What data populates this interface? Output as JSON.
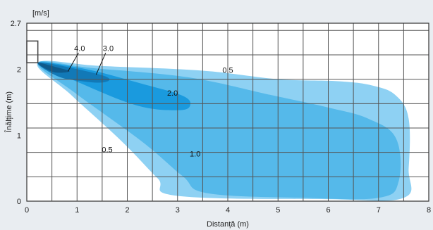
{
  "chart_data": {
    "type": "area",
    "title": "",
    "xlabel": "Distanță (m)",
    "ylabel": "Înălțime (m)",
    "unit_label": "[m/s]",
    "xlim": [
      0,
      8
    ],
    "ylim": [
      0,
      2.7
    ],
    "x_ticks": [
      "0",
      "1",
      "2",
      "3",
      "4",
      "5",
      "6",
      "7",
      "8"
    ],
    "y_ticks": [
      {
        "value": 0,
        "label": "0"
      },
      {
        "value": 1,
        "label": "1"
      },
      {
        "value": 2,
        "label": "2"
      },
      {
        "value": 2.7,
        "label": "2.7"
      }
    ],
    "grid": true,
    "grid_x_step": 0.5,
    "grid_y_step": 0.37,
    "source": {
      "x": 0.22,
      "y": 2.1
    },
    "series": [
      {
        "name": "0.5",
        "color": "#8ed1f3",
        "outline": [
          [
            0.22,
            2.1
          ],
          [
            1.5,
            2.05
          ],
          [
            3.5,
            1.98
          ],
          [
            5.0,
            1.85
          ],
          [
            6.2,
            1.82
          ],
          [
            6.9,
            1.75
          ],
          [
            7.35,
            1.6
          ],
          [
            7.6,
            1.25
          ],
          [
            7.6,
            0.5
          ],
          [
            7.5,
            0.05
          ],
          [
            6.0,
            0.03
          ],
          [
            3.0,
            0.08
          ],
          [
            2.6,
            0.35
          ],
          [
            1.9,
            0.9
          ],
          [
            0.9,
            1.6
          ]
        ]
      },
      {
        "name": "1.0",
        "color": "#55b9ea",
        "outline": [
          [
            0.22,
            2.1
          ],
          [
            1.3,
            2.02
          ],
          [
            3.2,
            1.88
          ],
          [
            4.8,
            1.62
          ],
          [
            6.0,
            1.42
          ],
          [
            6.8,
            1.25
          ],
          [
            7.35,
            0.95
          ],
          [
            7.4,
            0.3
          ],
          [
            7.0,
            0.05
          ],
          [
            5.5,
            0.05
          ],
          [
            3.6,
            0.12
          ],
          [
            3.1,
            0.38
          ],
          [
            2.3,
            0.9
          ],
          [
            1.0,
            1.62
          ]
        ]
      },
      {
        "name": "2.0",
        "color": "#1a9ade",
        "outline": [
          [
            0.22,
            2.1
          ],
          [
            1.2,
            2.0
          ],
          [
            2.3,
            1.78
          ],
          [
            3.1,
            1.6
          ],
          [
            3.25,
            1.45
          ],
          [
            3.0,
            1.38
          ],
          [
            2.2,
            1.45
          ],
          [
            1.1,
            1.78
          ]
        ]
      },
      {
        "name": "3.0",
        "color": "#1279b7",
        "outline": [
          [
            0.22,
            2.1
          ],
          [
            0.9,
            2.02
          ],
          [
            1.6,
            1.88
          ],
          [
            1.5,
            1.8
          ],
          [
            1.0,
            1.83
          ],
          [
            0.6,
            1.9
          ]
        ]
      },
      {
        "name": "4.0",
        "color": "#0e5a8c",
        "outline": [
          [
            0.22,
            2.1
          ],
          [
            0.6,
            2.03
          ],
          [
            0.85,
            1.97
          ],
          [
            0.6,
            1.95
          ],
          [
            0.4,
            2.0
          ]
        ]
      }
    ],
    "annotations": [
      {
        "text": "4.0",
        "x": 1.05,
        "y": 2.28
      },
      {
        "text": "3.0",
        "x": 1.62,
        "y": 2.28
      },
      {
        "text": "0.5",
        "x": 4.0,
        "y": 1.95
      },
      {
        "text": "2.0",
        "x": 2.9,
        "y": 1.6
      },
      {
        "text": "1.0",
        "x": 3.35,
        "y": 0.68
      },
      {
        "text": "0.5",
        "x": 1.6,
        "y": 0.74
      }
    ]
  }
}
